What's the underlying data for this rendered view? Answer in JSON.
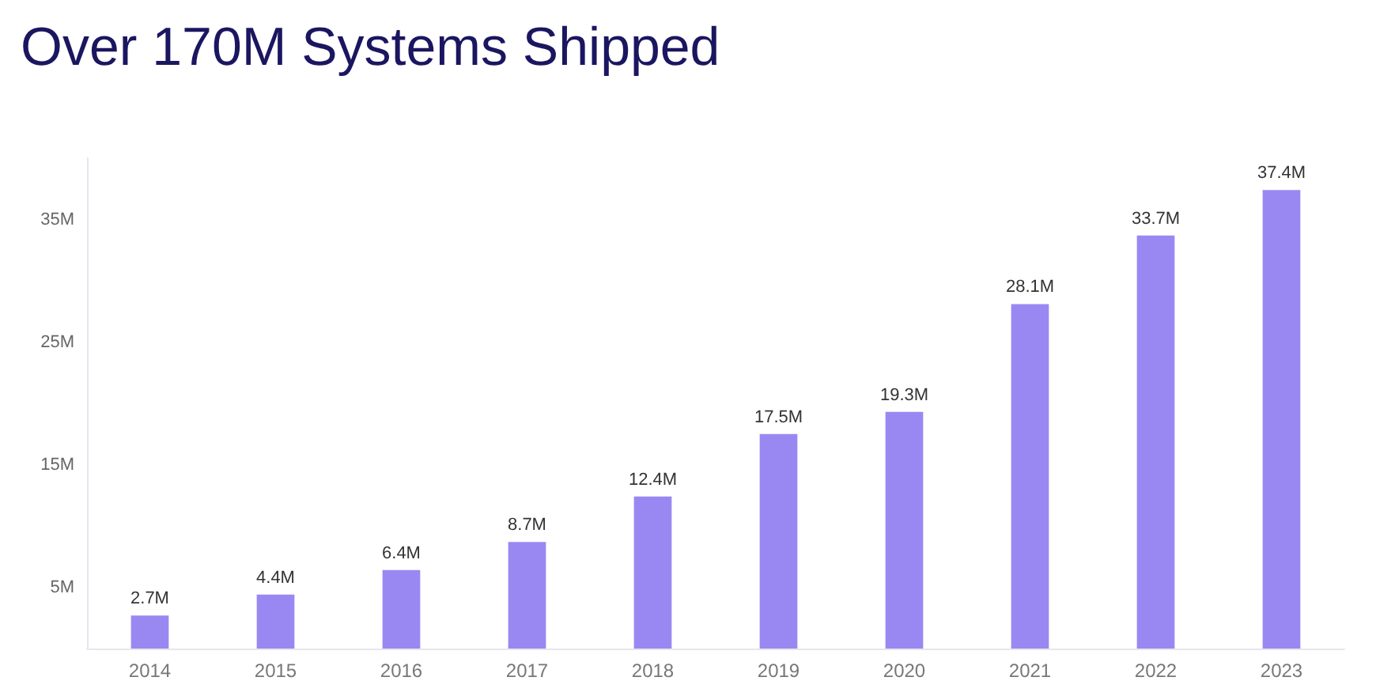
{
  "chart_data": {
    "type": "bar",
    "title": "Over 170M Systems Shipped",
    "categories": [
      "2014",
      "2015",
      "2016",
      "2017",
      "2018",
      "2019",
      "2020",
      "2021",
      "2022",
      "2023"
    ],
    "series": [
      {
        "color": "#9a88f2",
        "values": [
          2.7,
          4.4,
          6.4,
          8.7,
          12.4,
          17.5,
          19.3,
          28.1,
          33.7,
          37.4
        ],
        "value_labels": [
          "2.7M",
          "4.4M",
          "6.4M",
          "8.7M",
          "12.4M",
          "17.5M",
          "19.3M",
          "28.1M",
          "33.7M",
          "37.4M"
        ]
      }
    ],
    "yticks": [
      {
        "value": 5,
        "label": "5M"
      },
      {
        "value": 15,
        "label": "15M"
      },
      {
        "value": 25,
        "label": "25M"
      },
      {
        "value": 35,
        "label": "35M"
      }
    ],
    "ylim": [
      0,
      40
    ],
    "grid": false
  }
}
